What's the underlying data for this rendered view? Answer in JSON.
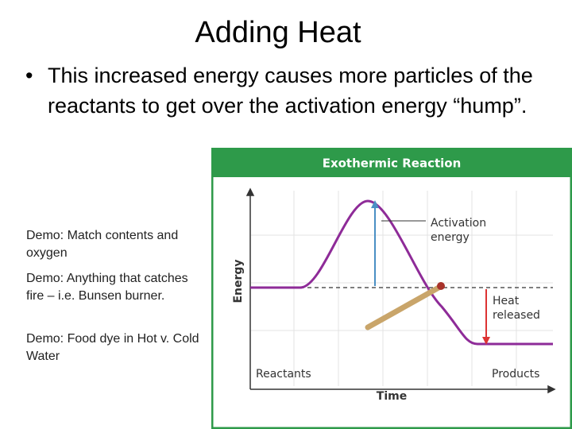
{
  "title": "Adding Heat",
  "bullets": [
    "This increased energy causes more particles of the reactants to get over the activation energy “hump”."
  ],
  "notes": [
    "Demo: Match contents and oxygen",
    "Demo: Anything that catches fire – i.e. Bunsen burner.",
    "Demo: Food dye in Hot v. Cold Water"
  ],
  "figure": {
    "title": "Exothermic Reaction",
    "y_axis_label": "Energy",
    "x_axis_label": "Time",
    "labels": {
      "activation": "Activation energy",
      "heat": "Heat released",
      "reactants": "Reactants",
      "products": "Products"
    }
  }
}
